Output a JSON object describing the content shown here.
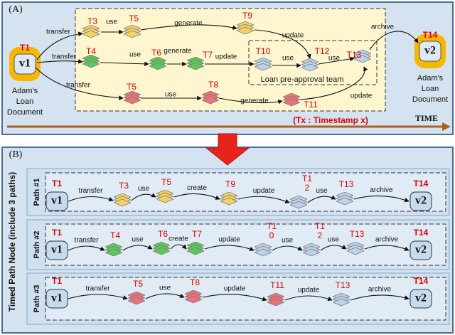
{
  "panel_a": {
    "label": "(A)",
    "start": {
      "time": "T1",
      "id": "v1",
      "caption": [
        "Adam's",
        "Loan",
        "Document"
      ]
    },
    "end": {
      "time": "T14",
      "id": "v2",
      "caption": [
        "Adam's",
        "Loan",
        "Document"
      ]
    },
    "nodes": [
      "T3",
      "T5",
      "T9",
      "T4",
      "T6",
      "T7",
      "T10",
      "T12",
      "T13",
      "T5",
      "T8",
      "T11"
    ],
    "edges": [
      "transfer",
      "transfer",
      "transfer",
      "use",
      "generate",
      "update",
      "archive",
      "use",
      "generate",
      "update",
      "use",
      "use",
      "use",
      "generate",
      "update"
    ],
    "team": "Loan pre-approval team",
    "legend": "(Tx : Timestamp x)",
    "axis": "TIME"
  },
  "panel_b": {
    "label": "(B)",
    "side_title": "Timed Path Node (include 3 paths)",
    "paths": [
      {
        "name": "Path #1",
        "start": {
          "time": "T1",
          "id": "v1"
        },
        "end": {
          "time": "T14",
          "id": "v2"
        },
        "nodes": [
          [
            "T3"
          ],
          [
            "T5"
          ],
          [
            "T9"
          ],
          [
            "T1",
            "2"
          ],
          [
            "T13"
          ]
        ],
        "edges": [
          "transfer",
          "use",
          "create",
          "update",
          "use",
          "archive"
        ]
      },
      {
        "name": "Path #2",
        "start": {
          "time": "T1",
          "id": "v1"
        },
        "end": {
          "time": "T14",
          "id": "v2"
        },
        "nodes": [
          [
            "T4"
          ],
          [
            "T6"
          ],
          [
            "T7"
          ],
          [
            "T1",
            "0"
          ],
          [
            "T1",
            "2"
          ],
          [
            "T13"
          ]
        ],
        "edges": [
          "transfer",
          "use",
          "create",
          "update",
          "use",
          "use",
          "archive"
        ]
      },
      {
        "name": "Path #3",
        "start": {
          "time": "T1",
          "id": "v1"
        },
        "end": {
          "time": "T14",
          "id": "v2"
        },
        "nodes": [
          [
            "T5"
          ],
          [
            "T8"
          ],
          [
            "T11"
          ],
          [
            "T13"
          ]
        ],
        "edges": [
          "transfer",
          "use",
          "update",
          "update",
          "archive"
        ]
      }
    ]
  }
}
